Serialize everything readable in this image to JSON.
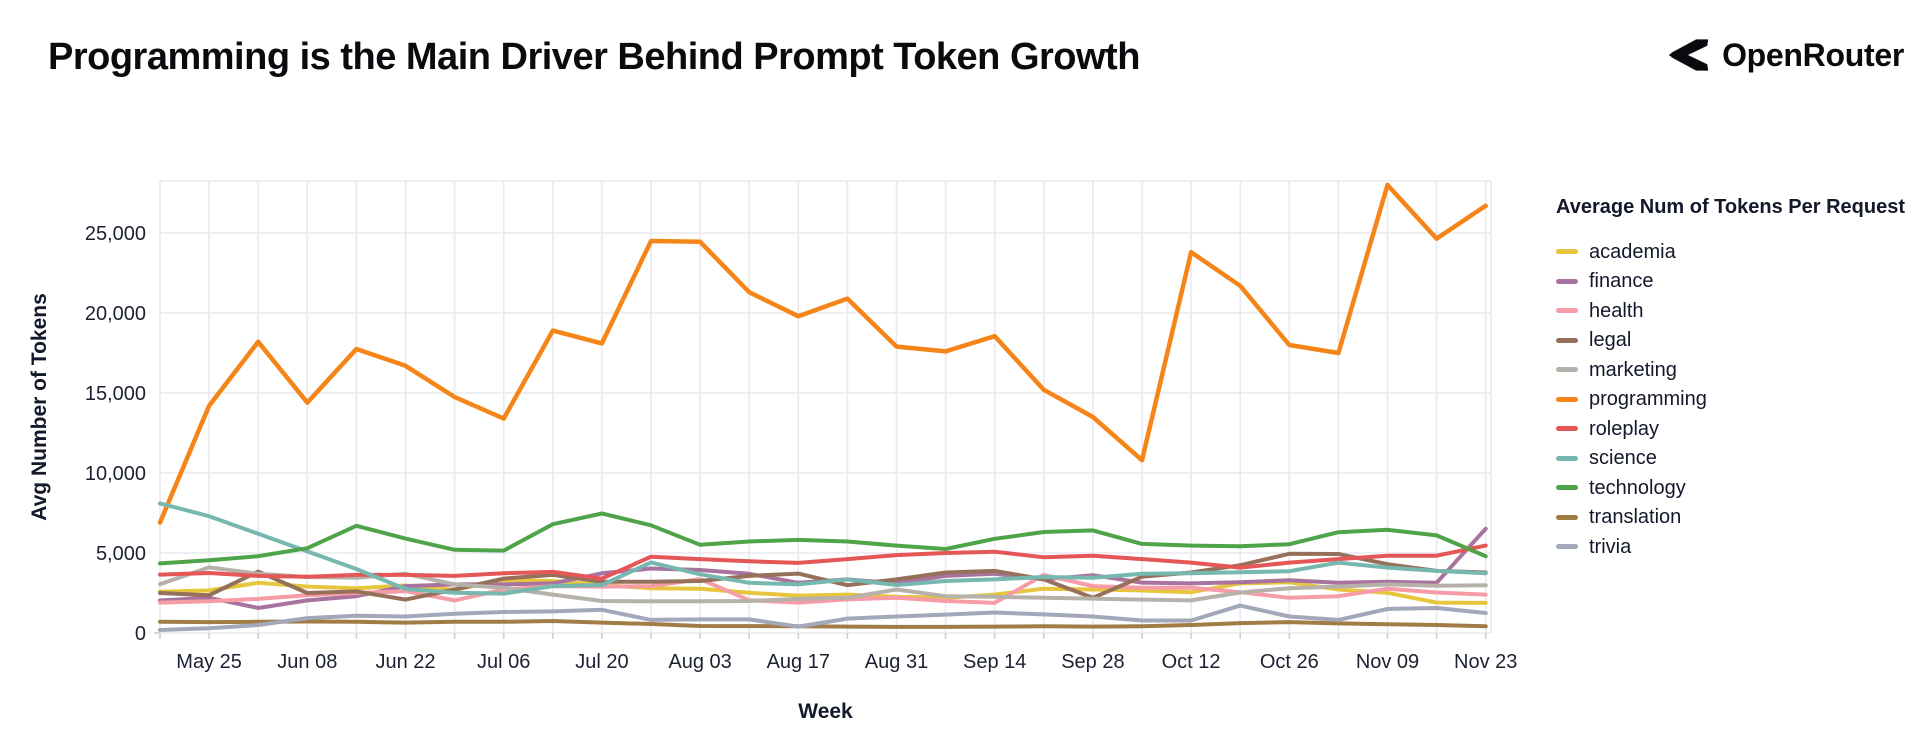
{
  "header": {
    "title": "Programming is the Main Driver Behind Prompt Token Growth",
    "logo_text": "OpenRouter"
  },
  "chart_data": {
    "type": "line",
    "legend_title": "Average Num of Tokens Per Request",
    "xlabel": "Week",
    "ylabel": "Avg Number of Tokens",
    "ylim": [
      0,
      28300
    ],
    "yticks": [
      0,
      5000,
      10000,
      15000,
      20000,
      25000
    ],
    "ytick_labels": [
      "0",
      "5,000",
      "10,000",
      "15,000",
      "20,000",
      "25,000"
    ],
    "x_tick_labels": [
      "May 25",
      "Jun 08",
      "Jun 22",
      "Jul 06",
      "Jul 20",
      "Aug 03",
      "Aug 17",
      "Aug 31",
      "Sep 14",
      "Sep 28",
      "Oct 12",
      "Oct 26",
      "Nov 09",
      "Nov 23"
    ],
    "x": [
      "May 18",
      "May 25",
      "Jun 01",
      "Jun 08",
      "Jun 15",
      "Jun 22",
      "Jun 29",
      "Jul 06",
      "Jul 13",
      "Jul 20",
      "Jul 27",
      "Aug 03",
      "Aug 10",
      "Aug 17",
      "Aug 24",
      "Aug 31",
      "Sep 07",
      "Sep 14",
      "Sep 21",
      "Sep 28",
      "Oct 05",
      "Oct 12",
      "Oct 19",
      "Oct 26",
      "Nov 02",
      "Nov 09",
      "Nov 16",
      "Nov 23"
    ],
    "grid": true,
    "legend_position": "right",
    "series": [
      {
        "name": "academia",
        "color": "#e7c63d",
        "values": [
          2580,
          2660,
          3140,
          2900,
          2800,
          2970,
          2700,
          3310,
          3250,
          3000,
          2800,
          2770,
          2510,
          2340,
          2400,
          2260,
          2200,
          2400,
          2770,
          2720,
          2660,
          2550,
          3100,
          3170,
          2720,
          2510,
          1900,
          1880
        ]
      },
      {
        "name": "finance",
        "color": "#a8739e",
        "values": [
          2030,
          2200,
          1560,
          2040,
          2300,
          2930,
          3040,
          3040,
          3100,
          3730,
          4030,
          3940,
          3700,
          3140,
          3350,
          3100,
          3570,
          3700,
          3350,
          3610,
          3150,
          3100,
          3170,
          3300,
          3140,
          3200,
          3140,
          6520
        ]
      },
      {
        "name": "health",
        "color": "#f59ca6",
        "values": [
          1900,
          1980,
          2130,
          2360,
          2500,
          2610,
          2040,
          2720,
          2930,
          2900,
          2930,
          3370,
          2050,
          1900,
          2100,
          2200,
          2000,
          1880,
          3630,
          2930,
          2830,
          2830,
          2550,
          2200,
          2300,
          2770,
          2530,
          2400
        ]
      },
      {
        "name": "legal",
        "color": "#96705a",
        "values": [
          2500,
          2360,
          3840,
          2500,
          2600,
          2090,
          2720,
          3400,
          3630,
          3200,
          3200,
          3250,
          3570,
          3710,
          2990,
          3350,
          3780,
          3880,
          3350,
          2200,
          3520,
          3780,
          4240,
          4950,
          4940,
          4300,
          3880,
          3780
        ]
      },
      {
        "name": "marketing",
        "color": "#b7b1ab",
        "values": [
          3050,
          4100,
          3700,
          3500,
          3450,
          3700,
          3040,
          2830,
          2400,
          2000,
          1980,
          1980,
          2000,
          2130,
          2200,
          2720,
          2300,
          2260,
          2200,
          2150,
          2090,
          2040,
          2530,
          2800,
          2900,
          3040,
          2950,
          2980
        ]
      },
      {
        "name": "programming",
        "color": "#f58518",
        "values": [
          6900,
          14200,
          18200,
          14400,
          17750,
          16700,
          14750,
          13400,
          18900,
          18100,
          24500,
          24450,
          21300,
          19800,
          20900,
          17900,
          17600,
          18550,
          15200,
          13500,
          10800,
          23800,
          21700,
          18000,
          17500,
          28000,
          24650,
          26700
        ]
      },
      {
        "name": "roleplay",
        "color": "#e45756",
        "values": [
          3650,
          3750,
          3570,
          3510,
          3630,
          3630,
          3570,
          3730,
          3820,
          3400,
          4770,
          4620,
          4480,
          4380,
          4620,
          4870,
          5000,
          5080,
          4730,
          4830,
          4620,
          4400,
          4090,
          4400,
          4620,
          4830,
          4830,
          5460
        ]
      },
      {
        "name": "science",
        "color": "#76b7b0",
        "values": [
          8100,
          7300,
          6200,
          5100,
          4000,
          2750,
          2510,
          2460,
          2930,
          3000,
          4410,
          3670,
          3140,
          3040,
          3350,
          3000,
          3250,
          3350,
          3500,
          3450,
          3700,
          3730,
          3800,
          3860,
          4400,
          4090,
          3880,
          3730
        ]
      },
      {
        "name": "technology",
        "color": "#4fa348",
        "values": [
          4350,
          4550,
          4800,
          5300,
          6700,
          5900,
          5200,
          5150,
          6800,
          7470,
          6730,
          5510,
          5720,
          5820,
          5720,
          5460,
          5250,
          5890,
          6310,
          6410,
          5570,
          5460,
          5420,
          5550,
          6300,
          6450,
          6100,
          4800
        ]
      },
      {
        "name": "translation",
        "color": "#a17c45",
        "values": [
          700,
          680,
          700,
          720,
          700,
          650,
          700,
          700,
          750,
          650,
          560,
          440,
          430,
          420,
          400,
          380,
          380,
          400,
          420,
          400,
          420,
          500,
          620,
          680,
          600,
          550,
          500,
          420
        ]
      },
      {
        "name": "trivia",
        "color": "#a2a7ba",
        "values": [
          190,
          300,
          500,
          930,
          1080,
          1030,
          1200,
          1310,
          1350,
          1450,
          820,
          850,
          850,
          400,
          900,
          1030,
          1150,
          1280,
          1160,
          1030,
          780,
          780,
          1710,
          1030,
          820,
          1500,
          1560,
          1250
        ]
      }
    ]
  }
}
